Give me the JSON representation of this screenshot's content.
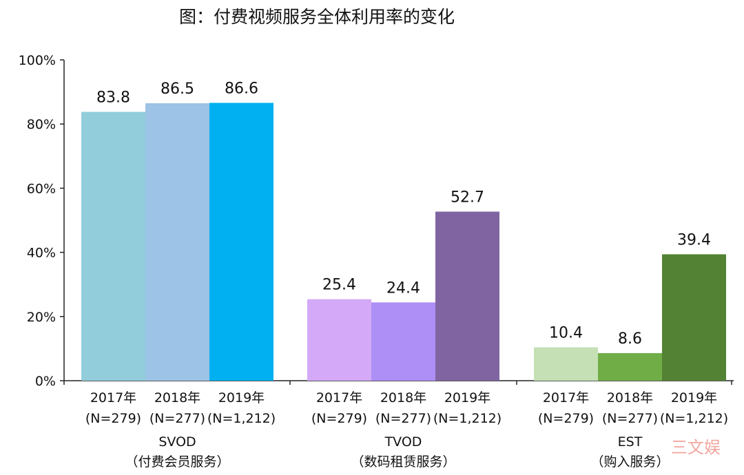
{
  "title": "图：付费视频服务全体利用率的变化",
  "watermark": "三文娱",
  "chart_data": {
    "type": "bar",
    "title": "图：付费视频服务全体利用率的变化",
    "ylim": [
      0,
      100
    ],
    "yticks": [
      "0%",
      "20%",
      "40%",
      "60%",
      "80%",
      "100%"
    ],
    "ytick_values": [
      0,
      20,
      40,
      60,
      80,
      100
    ],
    "groups": [
      {
        "name": "SVOD",
        "subname": "（付费会员服务）",
        "bars": [
          {
            "year": "2017年",
            "n": "(N=279)",
            "value": 83.8,
            "label": "83.8",
            "color": "#92cddc"
          },
          {
            "year": "2018年",
            "n": "(N=277)",
            "value": 86.5,
            "label": "86.5",
            "color": "#9dc3e6"
          },
          {
            "year": "2019年",
            "n": "(N=1,212)",
            "value": 86.6,
            "label": "86.6",
            "color": "#00b0f0"
          }
        ]
      },
      {
        "name": "TVOD",
        "subname": "（数码租赁服务）",
        "bars": [
          {
            "year": "2017年",
            "n": "(N=279)",
            "value": 25.4,
            "label": "25.4",
            "color": "#d4a9f7"
          },
          {
            "year": "2018年",
            "n": "(N=277)",
            "value": 24.4,
            "label": "24.4",
            "color": "#ad8ff5"
          },
          {
            "year": "2019年",
            "n": "(N=1,212)",
            "value": 52.7,
            "label": "52.7",
            "color": "#8064a2"
          }
        ]
      },
      {
        "name": "EST",
        "subname": "（购入服务）",
        "bars": [
          {
            "year": "2017年",
            "n": "(N=279)",
            "value": 10.4,
            "label": "10.4",
            "color": "#c5e0b4"
          },
          {
            "year": "2018年",
            "n": "(N=277)",
            "value": 8.6,
            "label": "8.6",
            "color": "#70ad47"
          },
          {
            "year": "2019年",
            "n": "(N=1,212)",
            "value": 39.4,
            "label": "39.4",
            "color": "#548235"
          }
        ]
      }
    ]
  }
}
